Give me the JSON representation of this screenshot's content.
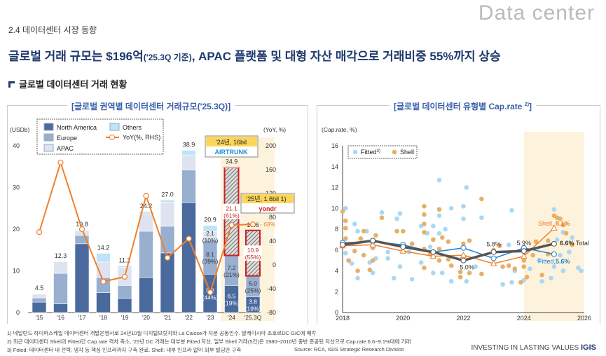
{
  "header": {
    "watermark": "Data center",
    "section": "2.4 데이터센터 시장 동향",
    "headline_a": "글로벌 거래 규모는 $196억",
    "headline_b": "('25.3Q 기준)",
    "headline_c": ", APAC 플랫폼 및 대형 자산 매각으로 거래비중 55%까지 상승",
    "subhead": "글로벌 데이터센터 거래 현황"
  },
  "colors": {
    "north_america": "#4a6a9e",
    "europe": "#99afd0",
    "apac": "#dde4ef",
    "others": "#bfe3f8",
    "yoy": "#f07f2a",
    "highlight": "#fdf3dc",
    "fitted": "#a9d8f5",
    "shell": "#e7b06a",
    "total": "#555555",
    "fitted_line": "#1f7fd0",
    "shell_line": "#f07f2a",
    "red": "#cc1f1f"
  },
  "chart_data": [
    {
      "type": "bar",
      "title": "[글로벌 권역별 데이터센터 거래규모('25.3Q)]",
      "ylabel": "(USDb)",
      "y2label": "(YoY, %)",
      "ylim": [
        0,
        40
      ],
      "y2lim": [
        -80,
        200
      ],
      "yticks": [
        0,
        10,
        20,
        30,
        40
      ],
      "y2ticks": [
        -80,
        -40,
        0,
        40,
        80,
        120,
        160,
        200
      ],
      "categories": [
        "'15",
        "'16",
        "'17",
        "'18",
        "'19",
        "'20",
        "'21",
        "'22",
        "'23",
        "'24",
        "'25.3Q"
      ],
      "series": [
        {
          "name": "North America",
          "values": [
            2.5,
            2.1,
            16.5,
            4.8,
            3.4,
            8.4,
            14.3,
            26.4,
            9.2,
            6.5,
            3.8
          ]
        },
        {
          "name": "Europe",
          "values": [
            1.0,
            7.3,
            2.0,
            3.6,
            3.1,
            11.1,
            6.4,
            7.8,
            8.1,
            7.2,
            5.0
          ]
        },
        {
          "name": "APAC",
          "values": [
            0.9,
            2.8,
            1.1,
            3.7,
            4.3,
            4.2,
            5.8,
            3.6,
            2.1,
            21.1,
            10.9
          ]
        },
        {
          "name": "Others",
          "values": [
            0.1,
            0.1,
            0.2,
            2.1,
            0.4,
            0.5,
            0.5,
            1.1,
            1.5,
            0.1,
            0.0
          ]
        }
      ],
      "totals": [
        "4.5",
        "12.3",
        "19.8",
        "14.2",
        "11.2",
        "24.2",
        "27.0",
        "38.9",
        "20.9",
        "34.9",
        "19.6"
      ],
      "yoy": {
        "name": "YoY(%, RHS)",
        "values": [
          55,
          172,
          60,
          -28,
          -20,
          116,
          12,
          44,
          -46,
          67,
          68
        ]
      },
      "yoy_label": "68%",
      "segment_labels": [
        {
          "cat": 8,
          "series": 0,
          "text": "9.2",
          "pct": "(44%)"
        },
        {
          "cat": 8,
          "series": 1,
          "text": "8.1",
          "pct": "(39%)"
        },
        {
          "cat": 8,
          "series": 2,
          "text": "2.1",
          "pct": "(10%)"
        },
        {
          "cat": 9,
          "series": 0,
          "text": "6.5",
          "pct": "(19%)"
        },
        {
          "cat": 9,
          "series": 1,
          "text": "7.2",
          "pct": "(21%)"
        },
        {
          "cat": 9,
          "series": 2,
          "text": "21.1",
          "pct": "(61%)"
        },
        {
          "cat": 10,
          "series": 0,
          "text": "3.8",
          "pct": "(19%)"
        },
        {
          "cat": 10,
          "series": 1,
          "text": "5.0",
          "pct": "(25%)"
        },
        {
          "cat": 10,
          "series": 2,
          "text": "10.9",
          "pct": "(55%)"
        }
      ],
      "highlight_categories": [
        "'24",
        "'25.3Q"
      ],
      "callouts": [
        {
          "text": "'24년, 16bil",
          "logo": "AIRTRUNK"
        },
        {
          "text": "'25년, 1.6bil",
          "sup": "1)",
          "logo": "yondr"
        }
      ],
      "legend": "top-left"
    },
    {
      "type": "scatter",
      "title": "[글로벌 데이터센터 유형별 Cap.rate",
      "title_sup": "2)",
      "title_end": "]",
      "ylabel": "(Cap.rate, %)",
      "xlim": [
        2018,
        2026
      ],
      "ylim": [
        0,
        16
      ],
      "xticks": [
        2018,
        2020,
        2022,
        2024,
        2026
      ],
      "yticks": [
        0,
        2,
        4,
        6,
        8,
        10,
        12,
        14,
        16
      ],
      "legend": "top-left",
      "legend_fitted": "Fitted",
      "legend_fitted_sup": "3)",
      "legend_shell": "Shell",
      "fitted_points": [
        [
          2018.1,
          10
        ],
        [
          2018.1,
          5.7
        ],
        [
          2018.3,
          4.7
        ],
        [
          2018.4,
          8.5
        ],
        [
          2018.5,
          7.8
        ],
        [
          2018.5,
          3.3
        ],
        [
          2018.8,
          7.8
        ],
        [
          2018.9,
          4.8
        ],
        [
          2019,
          3.8
        ],
        [
          2019.1,
          5.2
        ],
        [
          2019.3,
          9.6
        ],
        [
          2019.5,
          5.8
        ],
        [
          2019.5,
          5.2
        ],
        [
          2019.7,
          3.3
        ],
        [
          2019.8,
          9
        ],
        [
          2019.9,
          9.5
        ],
        [
          2019.9,
          4.4
        ],
        [
          2020.2,
          5.8
        ],
        [
          2020.3,
          3.2
        ],
        [
          2020.6,
          8.3
        ],
        [
          2020.6,
          4.8
        ],
        [
          2020.8,
          7.6
        ],
        [
          2020.9,
          6.3
        ],
        [
          2021,
          8.3
        ],
        [
          2021,
          3.8
        ],
        [
          2021.2,
          7.6
        ],
        [
          2021.2,
          12.7
        ],
        [
          2021.2,
          9.3
        ],
        [
          2021.3,
          3.8
        ],
        [
          2021.4,
          8
        ],
        [
          2021.6,
          10
        ],
        [
          2021.6,
          3
        ],
        [
          2022,
          9
        ],
        [
          2022,
          10.2
        ],
        [
          2022.1,
          12
        ],
        [
          2022.1,
          3
        ],
        [
          2022.4,
          4.4
        ],
        [
          2022.6,
          9.1
        ],
        [
          2023.3,
          2.7
        ],
        [
          2023.5,
          6.5
        ],
        [
          2023.6,
          2.9
        ],
        [
          2023.6,
          9.8
        ],
        [
          2023.7,
          4
        ],
        [
          2024,
          3.1
        ],
        [
          2024.2,
          4.2
        ],
        [
          2024.5,
          5
        ],
        [
          2024.6,
          3
        ],
        [
          2024.9,
          3.3
        ],
        [
          2025,
          9.9
        ],
        [
          2025,
          4.4
        ],
        [
          2025.1,
          7
        ],
        [
          2025.2,
          5.5
        ],
        [
          2025.3,
          4
        ],
        [
          2025.3,
          7.7
        ],
        [
          2025.5,
          5.8
        ],
        [
          2025.6,
          7.2
        ],
        [
          2025.8,
          4.3
        ],
        [
          2025.9,
          4
        ]
      ],
      "shell_points": [
        [
          2018,
          9.7
        ],
        [
          2018.1,
          8.8
        ],
        [
          2018.1,
          8.1
        ],
        [
          2018.1,
          7.1
        ],
        [
          2018.2,
          5
        ],
        [
          2018.4,
          5.9
        ],
        [
          2018.5,
          4
        ],
        [
          2018.6,
          7.1
        ],
        [
          2018.7,
          7.8
        ],
        [
          2018.7,
          5.5
        ],
        [
          2018.9,
          4.1
        ],
        [
          2019,
          5
        ],
        [
          2019,
          6.2
        ],
        [
          2019.1,
          7.4
        ],
        [
          2019.3,
          9.1
        ],
        [
          2019.8,
          7.8
        ],
        [
          2020,
          7.8
        ],
        [
          2020.3,
          6.6
        ],
        [
          2020.7,
          10.2
        ],
        [
          2020.7,
          9.4
        ],
        [
          2020.7,
          8.5
        ],
        [
          2020.7,
          7.7
        ],
        [
          2020.7,
          6.1
        ],
        [
          2020.7,
          4.3
        ],
        [
          2020.9,
          5.6
        ],
        [
          2021,
          7
        ],
        [
          2021.2,
          9.9
        ],
        [
          2021.2,
          6.1
        ],
        [
          2021.2,
          5
        ],
        [
          2021.3,
          7.2
        ],
        [
          2021.5,
          6.8
        ],
        [
          2021.5,
          5.1
        ],
        [
          2021.6,
          4.5
        ],
        [
          2021.9,
          3.9
        ],
        [
          2021.9,
          3.4
        ],
        [
          2022,
          6.6
        ],
        [
          2022.2,
          6.9
        ],
        [
          2022.2,
          3.8
        ],
        [
          2022.6,
          10.9
        ],
        [
          2022.6,
          3.7
        ],
        [
          2023,
          6
        ],
        [
          2023.2,
          6.4
        ],
        [
          2023.3,
          4.4
        ],
        [
          2023.5,
          4.5
        ],
        [
          2023.7,
          4.2
        ],
        [
          2023.9,
          2.9
        ],
        [
          2024,
          5
        ],
        [
          2024,
          4.4
        ],
        [
          2024.1,
          3.4
        ],
        [
          2024.3,
          5.5
        ],
        [
          2024.4,
          6.8
        ],
        [
          2024.6,
          3.6
        ],
        [
          2024.8,
          5.6
        ],
        [
          2024.8,
          6.9
        ],
        [
          2025,
          9.3
        ],
        [
          2025.1,
          9.1
        ],
        [
          2025.2,
          9
        ],
        [
          2025.3,
          8.4
        ],
        [
          2025.4,
          7.6
        ],
        [
          2025.6,
          6.5
        ]
      ],
      "lines": [
        {
          "name": "Fitted",
          "x": [
            2018,
            2019,
            2020,
            2021,
            2022,
            2023,
            2024,
            2025
          ],
          "values": [
            6.7,
            6.8,
            6.5,
            5.8,
            6.2,
            5.2,
            6.2,
            5.6
          ],
          "end_label": "Fitted,",
          "end_value": "5.6%"
        },
        {
          "name": "Shell",
          "x": [
            2018,
            2019,
            2020,
            2021,
            2022,
            2023,
            2024,
            2025
          ],
          "values": [
            6.4,
            6.5,
            5.9,
            5.4,
            5.5,
            4.7,
            5.4,
            8.1
          ],
          "end_label": "Shell,",
          "end_value": "8.1%"
        },
        {
          "name": "Total",
          "x": [
            2018,
            2019,
            2020,
            2021,
            2022,
            2023,
            2024,
            2025
          ],
          "values": [
            6.5,
            6.9,
            6.3,
            5.8,
            5.0,
            5.8,
            5.9,
            6.6
          ],
          "end_label": "Total",
          "end_value": "6.6%"
        }
      ],
      "point_labels": [
        {
          "x": 2022,
          "text": "5.0%"
        },
        {
          "x": 2023,
          "text": "5.8%"
        },
        {
          "x": 2024,
          "text": "5.9%"
        }
      ],
      "highlight_range": [
        2024,
        2026
      ]
    }
  ],
  "notes": [
    "1) 네덜란드 하이퍼스케일 데이터센터 개발운영사로 24년10월 디지털브릿지와 La Caisse가 지분 공동인수. 말레이시아 조호르DC GIC에 매각",
    "2) 최근 데이터센터 Shell과 Fitted간 Cap.rate 격차 축소, '25년 DC 거래는 대부분 Fitted 자산, 일부 Shell 거래(5건)은 1980~2010년 중반 준공된 자산으로 Cap.rate 6.6~9.1%대에 거래",
    "3) Fitted: 데이터센터 내 전력, 냉각 등 핵심 인프라까지 구축 완료. Shell: 내부 인프라 없이 외부 빌딩만 구축"
  ],
  "source": "Source: RCA, IGIS Strategic Research Division",
  "footer": {
    "slogan": "INVESTING IN LASTING VALUES",
    "brand": "IGIS"
  }
}
